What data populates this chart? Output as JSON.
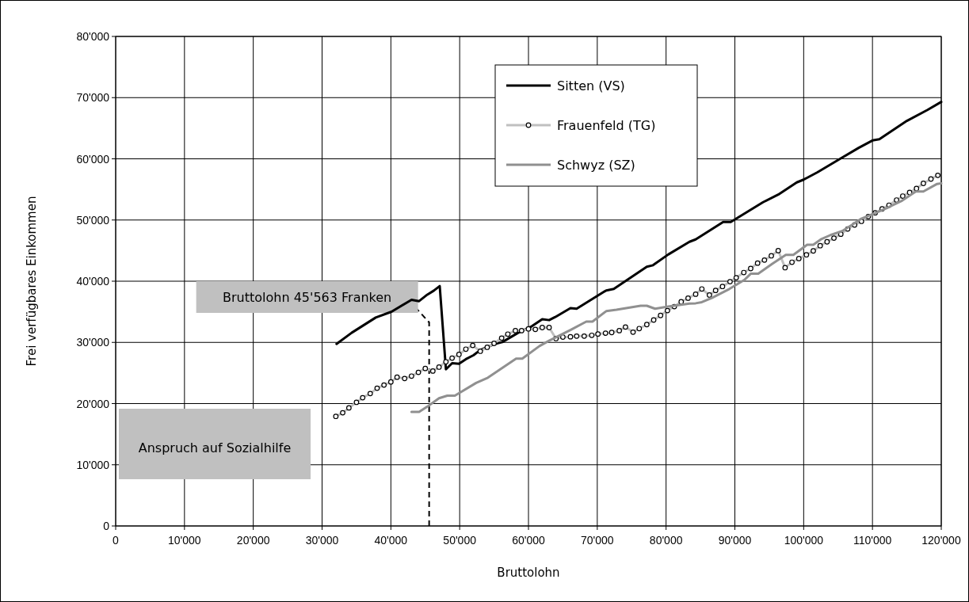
{
  "chart_data": {
    "type": "line",
    "xlabel": "Bruttolohn",
    "ylabel": "Frei verfügbares Einkommen",
    "xlim": [
      0,
      120000
    ],
    "ylim": [
      0,
      80000
    ],
    "xticks": [
      0,
      {
        "value": 10000,
        "label": "10'000"
      },
      {
        "value": 20000,
        "label": "20'000"
      },
      {
        "value": 30000,
        "label": "30'000"
      },
      {
        "value": 40000,
        "label": "40'000"
      },
      {
        "value": 50000,
        "label": "50'000"
      },
      {
        "value": 60000,
        "label": "60'000"
      },
      {
        "value": 70000,
        "label": "70'000"
      },
      {
        "value": 80000,
        "label": "80'000"
      },
      {
        "value": 90000,
        "label": "90'000"
      },
      {
        "value": 100000,
        "label": "100'000"
      },
      {
        "value": 110000,
        "label": "110'000"
      },
      {
        "value": 120000,
        "label": "120'000"
      }
    ],
    "yticks": [
      0,
      {
        "value": 10000,
        "label": "10'000"
      },
      {
        "value": 20000,
        "label": "20'000"
      },
      {
        "value": 30000,
        "label": "30'000"
      },
      {
        "value": 40000,
        "label": "40'000"
      },
      {
        "value": 50000,
        "label": "50'000"
      },
      {
        "value": 60000,
        "label": "60'000"
      },
      {
        "value": 70000,
        "label": "70'000"
      },
      {
        "value": 80000,
        "label": "80'000"
      }
    ],
    "grid": true,
    "legend": "top",
    "line_style": "solid",
    "series": [
      {
        "name": "Sitten (VS)",
        "color": "#000000",
        "marker": "none",
        "x": [
          32100,
          34300,
          37800,
          40100,
          43000,
          44100,
          45300,
          46250,
          47100,
          48000,
          48900,
          49900,
          50900,
          52000,
          53000,
          55100,
          56200,
          58500,
          60500,
          62000,
          63000,
          63900,
          66100,
          67000,
          71300,
          72400,
          77200,
          78100,
          80300,
          83400,
          84300,
          88300,
          89400,
          94100,
          96300,
          97650,
          99000,
          100000,
          102000,
          105000,
          108000,
          110000,
          111000,
          115000,
          118000,
          120000
        ],
        "values": [
          29750,
          31570,
          34060,
          35020,
          36960,
          36740,
          37810,
          38460,
          39200,
          25600,
          26600,
          26500,
          27260,
          27900,
          28760,
          29750,
          30050,
          31570,
          32640,
          33800,
          33640,
          34150,
          35600,
          35500,
          38490,
          38730,
          42370,
          42610,
          44350,
          46440,
          46830,
          49680,
          49680,
          52910,
          54150,
          55150,
          56150,
          56600,
          57800,
          59800,
          61800,
          63000,
          63200,
          66200,
          68000,
          69300
        ]
      },
      {
        "name": "Frauenfeld (TG)",
        "color": "#c0c0c0",
        "marker": "circle",
        "x": [
          32000,
          33000,
          33900,
          35000,
          35900,
          37000,
          38000,
          39000,
          40000,
          40900,
          42000,
          43000,
          44000,
          45000,
          46100,
          47000,
          48000,
          48900,
          49900,
          50900,
          51900,
          53000,
          54000,
          55000,
          56100,
          57000,
          58100,
          59000,
          60000,
          61000,
          62000,
          63000,
          64000,
          65000,
          66100,
          67000,
          68100,
          69200,
          70100,
          71200,
          72100,
          73200,
          74100,
          75200,
          76100,
          77200,
          78200,
          79200,
          80200,
          81200,
          82200,
          83200,
          84300,
          85200,
          86300,
          87200,
          88200,
          89300,
          90200,
          91300,
          92300,
          93300,
          94300,
          95300,
          96300,
          97300,
          98300,
          99300,
          100400,
          101400,
          102400,
          103400,
          104400,
          105400,
          106400,
          107400,
          108400,
          109400,
          110400,
          111400,
          112400,
          113500,
          114400,
          115400,
          116400,
          117400,
          118500,
          119500
        ],
        "values": [
          17900,
          18500,
          19300,
          20200,
          20960,
          21640,
          22510,
          23030,
          23540,
          24320,
          24100,
          24490,
          25100,
          25740,
          25320,
          25960,
          26820,
          27430,
          28030,
          28890,
          29500,
          28550,
          29200,
          29840,
          30700,
          31350,
          31920,
          31920,
          32210,
          32120,
          32430,
          32430,
          30620,
          30870,
          30920,
          31020,
          31020,
          31160,
          31370,
          31510,
          31620,
          31920,
          32510,
          31670,
          32260,
          32910,
          33660,
          34400,
          35200,
          35850,
          36640,
          37230,
          37880,
          38730,
          37740,
          38490,
          39130,
          39920,
          40570,
          41420,
          42070,
          42960,
          43450,
          44150,
          45000,
          42210,
          43100,
          43700,
          44310,
          44950,
          45800,
          46440,
          47040,
          47680,
          48540,
          49190,
          49780,
          50570,
          51170,
          51810,
          52420,
          53260,
          53910,
          54500,
          55150,
          55990,
          56700,
          57300
        ]
      },
      {
        "name": "Schwyz (SZ)",
        "color": "#909090",
        "marker": "none",
        "x": [
          43000,
          44100,
          45300,
          47000,
          48200,
          49300,
          52400,
          54100,
          58200,
          59100,
          61600,
          63000,
          66100,
          68400,
          69300,
          71300,
          72800,
          76300,
          77200,
          78400,
          80300,
          83400,
          84300,
          85200,
          86600,
          87900,
          89200,
          91400,
          92300,
          93400,
          95400,
          97400,
          98500,
          100500,
          101400,
          102500,
          103900,
          105600,
          107000,
          108300,
          110500,
          112300,
          114300,
          116300,
          117400,
          119400,
          120000
        ],
        "values": [
          18630,
          18630,
          19500,
          20870,
          21300,
          21300,
          23380,
          24230,
          27340,
          27340,
          29400,
          30270,
          32020,
          33400,
          33400,
          35100,
          35340,
          35990,
          35990,
          35500,
          35850,
          36340,
          36390,
          36580,
          37230,
          37980,
          38730,
          40220,
          41220,
          41220,
          42810,
          44310,
          44310,
          45950,
          45950,
          46840,
          47540,
          48190,
          49190,
          50170,
          51170,
          52070,
          53160,
          54660,
          54660,
          55900,
          56000
        ]
      }
    ],
    "ref_lines": [
      {
        "axis": "x",
        "value": 45563,
        "label": "Bruttolohn 45'563 Franken",
        "color": "#000000",
        "line_style": "dashed"
      }
    ],
    "annotations": [
      "Anspruch auf Sozialhilfe"
    ]
  }
}
